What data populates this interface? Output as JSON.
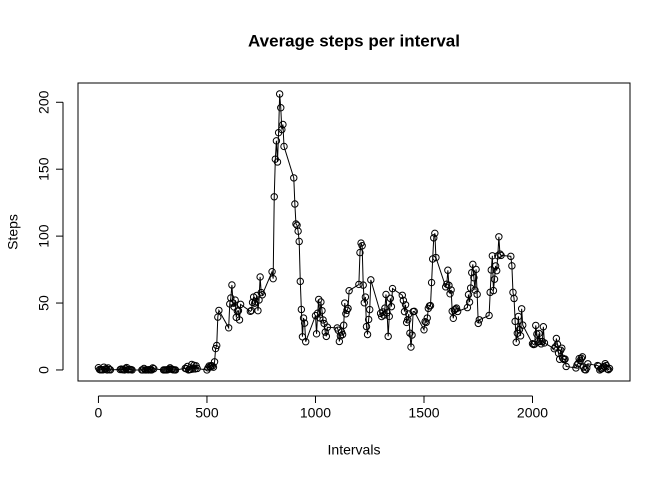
{
  "chart_data": {
    "type": "line",
    "title": "Average steps per interval",
    "x_label": "Intervals",
    "y_label": "Steps",
    "color": "#000000",
    "markers": true,
    "x": [
      0,
      5,
      10,
      15,
      20,
      25,
      30,
      35,
      40,
      45,
      50,
      55,
      100,
      105,
      110,
      115,
      120,
      125,
      130,
      135,
      140,
      145,
      150,
      155,
      200,
      205,
      210,
      215,
      220,
      225,
      230,
      235,
      240,
      245,
      250,
      255,
      300,
      305,
      310,
      315,
      320,
      325,
      330,
      335,
      340,
      345,
      350,
      355,
      400,
      405,
      410,
      415,
      420,
      425,
      430,
      435,
      440,
      445,
      450,
      455,
      500,
      505,
      510,
      515,
      520,
      525,
      530,
      535,
      540,
      545,
      550,
      555,
      600,
      605,
      610,
      615,
      620,
      625,
      630,
      635,
      640,
      645,
      650,
      655,
      700,
      705,
      710,
      715,
      720,
      725,
      730,
      735,
      740,
      745,
      750,
      755,
      800,
      805,
      810,
      815,
      820,
      825,
      830,
      835,
      840,
      845,
      850,
      855,
      900,
      905,
      910,
      915,
      920,
      925,
      930,
      935,
      940,
      945,
      950,
      955,
      1000,
      1005,
      1010,
      1015,
      1020,
      1025,
      1030,
      1035,
      1040,
      1045,
      1050,
      1055,
      1100,
      1105,
      1110,
      1115,
      1120,
      1125,
      1130,
      1135,
      1140,
      1145,
      1150,
      1155,
      1200,
      1205,
      1210,
      1215,
      1220,
      1225,
      1230,
      1235,
      1240,
      1245,
      1250,
      1255,
      1300,
      1305,
      1310,
      1315,
      1320,
      1325,
      1330,
      1335,
      1340,
      1345,
      1350,
      1355,
      1400,
      1405,
      1410,
      1415,
      1420,
      1425,
      1430,
      1435,
      1440,
      1445,
      1450,
      1455,
      1500,
      1505,
      1510,
      1515,
      1520,
      1525,
      1530,
      1535,
      1540,
      1545,
      1550,
      1555,
      1600,
      1605,
      1610,
      1615,
      1620,
      1625,
      1630,
      1635,
      1640,
      1645,
      1650,
      1655,
      1700,
      1705,
      1710,
      1715,
      1720,
      1725,
      1730,
      1735,
      1740,
      1745,
      1750,
      1755,
      1800,
      1805,
      1810,
      1815,
      1820,
      1825,
      1830,
      1835,
      1840,
      1845,
      1850,
      1855,
      1900,
      1905,
      1910,
      1915,
      1920,
      1925,
      1930,
      1935,
      1940,
      1945,
      1950,
      1955,
      2000,
      2005,
      2010,
      2015,
      2020,
      2025,
      2030,
      2035,
      2040,
      2045,
      2050,
      2055,
      2100,
      2105,
      2110,
      2115,
      2120,
      2125,
      2130,
      2135,
      2140,
      2145,
      2150,
      2155,
      2200,
      2205,
      2210,
      2215,
      2220,
      2225,
      2230,
      2235,
      2240,
      2245,
      2250,
      2255,
      2300,
      2305,
      2310,
      2315,
      2320,
      2325,
      2330,
      2335,
      2340,
      2345,
      2350,
      2355
    ],
    "values": [
      1.7,
      0.3,
      0.1,
      0.2,
      0.1,
      2.1,
      0.5,
      0.9,
      0,
      1.5,
      0.3,
      0.1,
      0.3,
      0.7,
      0.2,
      0.3,
      0,
      1.1,
      1.8,
      0.2,
      0.2,
      0.4,
      0.3,
      0,
      0,
      0,
      1.1,
      0,
      0,
      0.1,
      0,
      0.2,
      0,
      0,
      1.5,
      0.9,
      0,
      0,
      0,
      0,
      0.2,
      0.6,
      1.6,
      0.6,
      0.5,
      0.1,
      0,
      0,
      1.2,
      0.9,
      2.6,
      0,
      0.3,
      0.4,
      4.1,
      0.7,
      3.5,
      0.8,
      3.1,
      1.1,
      0,
      1.6,
      3,
      2.2,
      3.3,
      3,
      2.1,
      6.1,
      16,
      18.3,
      39.5,
      44.5,
      31.5,
      49.3,
      53.8,
      63.5,
      50,
      47.1,
      52.2,
      39.3,
      44,
      44.2,
      37.4,
      49,
      43.8,
      44.4,
      50.5,
      54.5,
      49.9,
      51,
      55.7,
      44.3,
      52.3,
      69.5,
      57.8,
      56.2,
      73.4,
      68.2,
      129.4,
      157.5,
      171.2,
      155.4,
      177.3,
      206.2,
      195.9,
      179.6,
      183.4,
      167,
      143.5,
      124,
      109.1,
      108.1,
      103.7,
      96,
      66.2,
      45.2,
      24.8,
      38.8,
      35,
      21.1,
      40.6,
      27,
      42.4,
      52.7,
      38.9,
      50.8,
      44.3,
      37.4,
      34.7,
      28.3,
      25.1,
      31.9,
      31.4,
      29.7,
      21.3,
      25.5,
      28.4,
      26.5,
      33.4,
      50,
      42,
      44.6,
      46,
      59.2,
      63.9,
      87.7,
      94.8,
      92.8,
      63.4,
      50.2,
      54.5,
      32.4,
      26.5,
      37.7,
      45.1,
      67.3,
      42.3,
      39.9,
      43.3,
      41,
      46.2,
      56.4,
      42.8,
      25.1,
      40,
      53.5,
      47.3,
      60.8,
      55.8,
      52,
      43.6,
      48.7,
      35.5,
      37.5,
      41.8,
      27.5,
      17.1,
      26.1,
      43.6,
      43.8,
      30,
      36.1,
      35.5,
      38.8,
      46,
      47.8,
      48.1,
      65.3,
      82.9,
      98.7,
      102.1,
      84,
      62.1,
      64.1,
      74.5,
      63.2,
      56.9,
      59.8,
      43.9,
      38.6,
      44.7,
      45.5,
      46.2,
      43.7,
      46.6,
      56.3,
      50.7,
      61.2,
      72.7,
      78.9,
      68.9,
      59.7,
      75.1,
      56.5,
      34.8,
      37.5,
      40.7,
      58,
      74.7,
      85.3,
      59.3,
      67.8,
      77.7,
      74.2,
      85.3,
      99.5,
      86.6,
      85.6,
      84.9,
      77.8,
      58,
      53.4,
      36.3,
      20.7,
      27.4,
      40,
      30.2,
      25.5,
      45.7,
      33.5,
      19.6,
      19,
      19.3,
      33.3,
      26.8,
      21.2,
      27.3,
      21.3,
      19.5,
      21.3,
      32.3,
      20.2,
      15.9,
      17.2,
      23.5,
      19.2,
      12.5,
      8,
      14.7,
      16.3,
      8.7,
      7.8,
      8.1,
      2.6,
      1.5,
      3.7,
      4.8,
      8.5,
      7.1,
      8.7,
      9.8,
      2.2,
      0.3,
      0.1,
      1.6,
      4.6,
      3.3,
      2.8,
      0,
      0.8,
      1,
      1.6,
      2.6,
      4.7,
      3.3,
      0.6,
      0.2,
      1.1
    ],
    "xlim": [
      -94.2,
      2449.2
    ],
    "ylim": [
      -8.25,
      214.4
    ],
    "xticks": [
      0,
      500,
      1000,
      1500,
      2000
    ],
    "yticks": [
      0,
      50,
      100,
      150,
      200
    ]
  }
}
